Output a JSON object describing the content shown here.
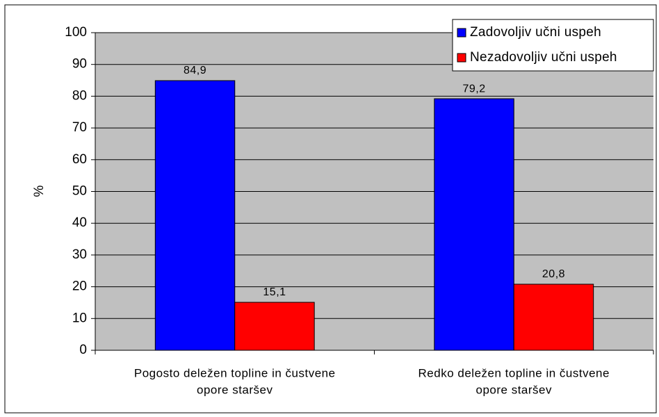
{
  "chart_data": {
    "type": "bar",
    "categories": [
      [
        "Pogosto deležen topline in čustvene",
        "opore staršev"
      ],
      [
        "Redko deležen topline in čustvene",
        "opore staršev"
      ]
    ],
    "series": [
      {
        "name": "Zadovoljiv učni uspeh",
        "color": "#0000ff",
        "values": [
          84.9,
          79.2
        ],
        "value_labels": [
          "84,9",
          "79,2"
        ]
      },
      {
        "name": "Nezadovoljiv učni uspeh",
        "color": "#ff0000",
        "values": [
          15.1,
          20.8
        ],
        "value_labels": [
          "15,1",
          "20,8"
        ]
      }
    ],
    "ylabel": "%",
    "ylim": [
      0,
      100
    ],
    "yticks": [
      0,
      10,
      20,
      30,
      40,
      50,
      60,
      70,
      80,
      90,
      100
    ],
    "grid": true,
    "legend": "upper right",
    "plot_background": "#c0c0c0"
  }
}
